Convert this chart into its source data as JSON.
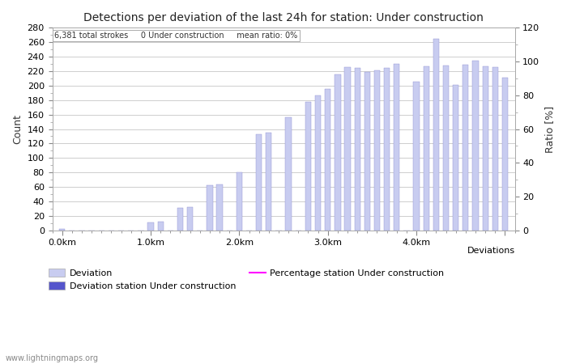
{
  "title": "Detections per deviation of the last 24h for station: Under construction",
  "subtitle": "6,381 total strokes     0 Under construction     mean ratio: 0%",
  "xlabel": "Deviations",
  "ylabel_left": "Count",
  "ylabel_right": "Ratio [%]",
  "ylim_left": [
    0,
    280
  ],
  "ylim_right": [
    0,
    120
  ],
  "yticks_left": [
    0,
    20,
    40,
    60,
    80,
    100,
    120,
    140,
    160,
    180,
    200,
    220,
    240,
    260,
    280
  ],
  "yticks_right": [
    0,
    20,
    40,
    60,
    80,
    100,
    120
  ],
  "xtick_positions": [
    0,
    9,
    18,
    27,
    36,
    45
  ],
  "xtick_labels": [
    "0.0km",
    "1.0km",
    "2.0km",
    "3.0km",
    "4.0km",
    ""
  ],
  "bar_values": [
    2,
    0,
    0,
    0,
    0,
    0,
    0,
    0,
    0,
    11,
    12,
    0,
    31,
    32,
    0,
    62,
    63,
    0,
    80,
    0,
    133,
    135,
    0,
    156,
    0,
    177,
    186,
    195,
    215,
    226,
    225,
    219,
    221,
    225,
    230,
    0,
    205,
    227,
    265,
    228,
    201,
    229,
    234,
    227,
    226,
    211
  ],
  "bar_color": "#c8ccf0",
  "bar_color_edge": "#9090d0",
  "bar_color2": "#5555cc",
  "bar_width": 0.6,
  "grid_color": "#bbbbbb",
  "background_color": "#ffffff",
  "watermark": "www.lightningmaps.org",
  "legend_deviation_label": "Deviation",
  "legend_station_label": "Deviation station Under construction",
  "legend_pct_label": "Percentage station Under construction"
}
